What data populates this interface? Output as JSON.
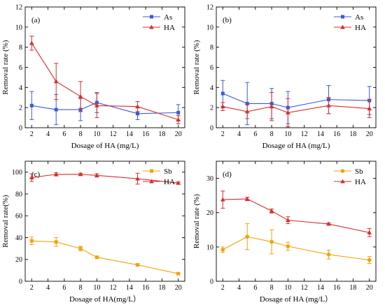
{
  "chart_data": [
    {
      "type": "line",
      "panel_label": "(a)",
      "xlabel": "Dosage of HA (mg/L)",
      "ylabel": "Removal rate (%)",
      "x": [
        2,
        5,
        8,
        10,
        15,
        20
      ],
      "xticks": [
        2,
        4,
        6,
        8,
        10,
        12,
        14,
        16,
        18,
        20
      ],
      "xlim": [
        1.2,
        20.8
      ],
      "yticks": [
        0,
        2,
        4,
        6,
        8,
        10,
        12
      ],
      "ylim": [
        0,
        12
      ],
      "legend_position": "top-right",
      "series": [
        {
          "name": "As",
          "color": "#3b5bdb",
          "marker": "square",
          "values": [
            2.2,
            1.8,
            1.8,
            2.5,
            1.4,
            1.5
          ],
          "errors": [
            1.4,
            1.5,
            1.1,
            1.0,
            0.6,
            0.8
          ]
        },
        {
          "name": "HA",
          "color": "#d62e2e",
          "marker": "triangle",
          "values": [
            8.4,
            4.6,
            3.1,
            2.2,
            2.1,
            0.8
          ],
          "errors": [
            0.7,
            1.8,
            1.5,
            1.2,
            0.5,
            0.4
          ]
        }
      ]
    },
    {
      "type": "line",
      "panel_label": "(b)",
      "xlabel": "Dosage of HA (mg/L)",
      "ylabel": "Removal rate (%)",
      "x": [
        2,
        5,
        8,
        10,
        15,
        20
      ],
      "xticks": [
        2,
        4,
        6,
        8,
        10,
        12,
        14,
        16,
        18,
        20
      ],
      "xlim": [
        1.2,
        20.8
      ],
      "yticks": [
        0,
        2,
        4,
        6,
        8,
        10,
        12
      ],
      "ylim": [
        0,
        12
      ],
      "legend_position": "top-right",
      "series": [
        {
          "name": "As",
          "color": "#3b5bdb",
          "marker": "square",
          "values": [
            3.4,
            2.4,
            2.4,
            2.0,
            2.8,
            2.7
          ],
          "errors": [
            1.3,
            2.1,
            1.5,
            1.6,
            1.4,
            1.4
          ]
        },
        {
          "name": "HA",
          "color": "#d62e2e",
          "marker": "triangle",
          "values": [
            2.1,
            1.6,
            2.1,
            1.5,
            2.2,
            1.9
          ],
          "errors": [
            0.4,
            0.7,
            1.4,
            1.4,
            0.8,
            0.9
          ]
        }
      ]
    },
    {
      "type": "line",
      "panel_label": "(c)",
      "xlabel": "Dosage of HA(mg/L）",
      "ylabel": "Removal rate(%)",
      "x": [
        2,
        5,
        8,
        10,
        15,
        20
      ],
      "xticks": [
        2,
        4,
        6,
        8,
        10,
        12,
        14,
        16,
        18,
        20
      ],
      "xlim": [
        1.2,
        20.8
      ],
      "yticks": [
        0,
        20,
        40,
        60,
        80,
        100
      ],
      "ylim": [
        0,
        110
      ],
      "legend_position": "top-right",
      "series": [
        {
          "name": "Sb",
          "color": "#f0a30a",
          "marker": "square",
          "values": [
            37,
            36,
            30,
            22,
            15,
            7
          ],
          "errors": [
            3.5,
            4.0,
            2.0,
            1.0,
            1.0,
            1.0
          ]
        },
        {
          "name": "HA",
          "color": "#d62e2e",
          "marker": "triangle",
          "values": [
            95,
            98,
            98,
            97,
            94,
            90
          ],
          "errors": [
            3.5,
            1.5,
            1.0,
            1.5,
            5.0,
            1.0
          ]
        }
      ]
    },
    {
      "type": "line",
      "panel_label": "(d)",
      "xlabel": "Dosage of HA (mg/L）",
      "ylabel": "Removal rate (%)",
      "x": [
        2,
        5,
        8,
        10,
        15,
        20
      ],
      "xticks": [
        2,
        4,
        6,
        8,
        10,
        12,
        14,
        16,
        18,
        20
      ],
      "xlim": [
        1.2,
        20.8
      ],
      "yticks": [
        0,
        10,
        20,
        30
      ],
      "ylim": [
        0,
        35
      ],
      "legend_position": "top-right",
      "series": [
        {
          "name": "Sb",
          "color": "#f0a30a",
          "marker": "circle",
          "values": [
            9.2,
            13.0,
            11.5,
            10.2,
            7.8,
            6.2
          ],
          "errors": [
            0.8,
            3.8,
            3.5,
            1.2,
            1.3,
            1.0
          ]
        },
        {
          "name": "HA",
          "color": "#d62e2e",
          "marker": "triangle",
          "values": [
            23.8,
            24.0,
            20.5,
            17.8,
            16.7,
            14.2
          ],
          "errors": [
            2.5,
            0.5,
            0.6,
            1.0,
            0.3,
            1.2
          ]
        }
      ]
    }
  ]
}
